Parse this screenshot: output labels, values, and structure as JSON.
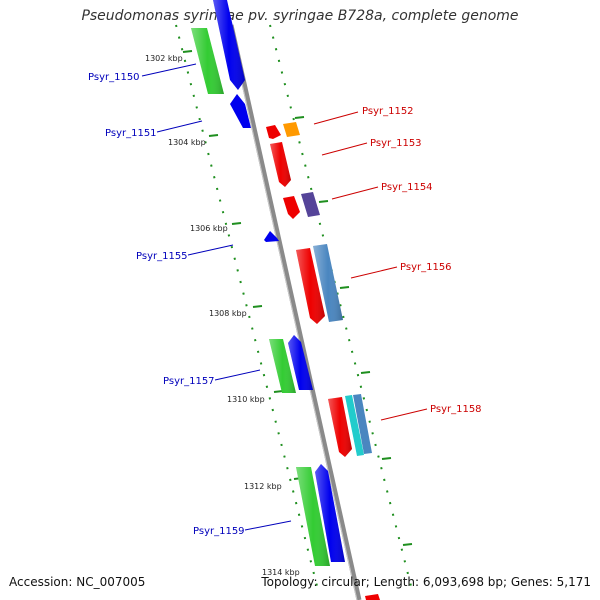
{
  "title": "Pseudomonas syringae pv. syringae B728a, complete genome",
  "footer": {
    "accession": "Accession: NC_007005",
    "summary": "Topology: circular; Length: 6,093,698 bp; Genes: 5,171"
  },
  "colors": {
    "backbone": "#8a8a8a",
    "tick": "#1f8f1f",
    "label_left": "#0000bb",
    "label_right": "#cc0000",
    "green_gene": "#33cc33",
    "blue_gene": "#0000ee",
    "red_gene": "#ee0000",
    "orange_gene": "#ff9900",
    "purple_gene": "#554499",
    "steel_gene": "#4a86c0",
    "cyan_gene": "#22cccc"
  },
  "ticks": [
    "1302 kbp",
    "1304 kbp",
    "1306 kbp",
    "1308 kbp",
    "1310 kbp",
    "1312 kbp",
    "1314 kbp"
  ],
  "gene_labels": [
    {
      "text": "Psyr_1150",
      "side": "left"
    },
    {
      "text": "Psyr_1151",
      "side": "left"
    },
    {
      "text": "Psyr_1152",
      "side": "right"
    },
    {
      "text": "Psyr_1153",
      "side": "right"
    },
    {
      "text": "Psyr_1154",
      "side": "right"
    },
    {
      "text": "Psyr_1155",
      "side": "left"
    },
    {
      "text": "Psyr_1156",
      "side": "right"
    },
    {
      "text": "Psyr_1157",
      "side": "left"
    },
    {
      "text": "Psyr_1158",
      "side": "right"
    },
    {
      "text": "Psyr_1159",
      "side": "left"
    }
  ]
}
